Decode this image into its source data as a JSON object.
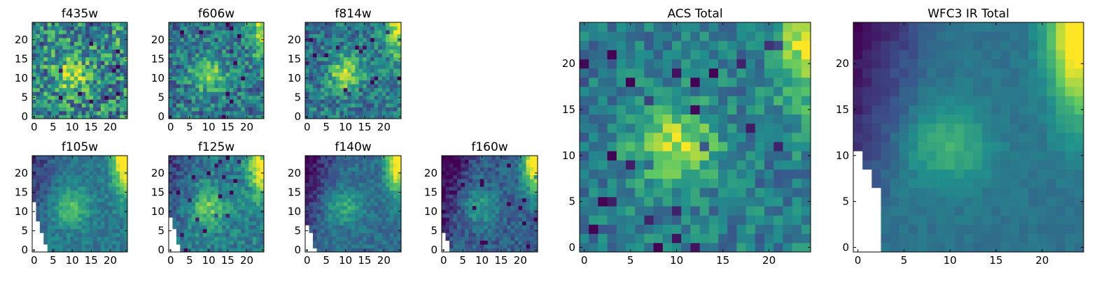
{
  "figure": {
    "background": "#ffffff"
  },
  "colormap": {
    "name": "viridis",
    "stops": [
      "#440154",
      "#3b528b",
      "#21918c",
      "#5ec962",
      "#fde725"
    ]
  },
  "chart_data": [
    {
      "type": "heatmap",
      "title": "f435w",
      "grid": false,
      "xlim": [
        0,
        25
      ],
      "ylim": [
        0,
        25
      ],
      "xticks": [
        0,
        5,
        10,
        15,
        20
      ],
      "yticks": [
        0,
        5,
        10,
        15,
        20
      ],
      "missing_region": [],
      "features": {
        "noise": 0.3,
        "blob": 0.35,
        "corner": 0.1,
        "lowleft": 0.0,
        "base": 0.48
      }
    },
    {
      "type": "heatmap",
      "title": "f606w",
      "grid": false,
      "xlim": [
        0,
        25
      ],
      "ylim": [
        0,
        25
      ],
      "xticks": [
        0,
        5,
        10,
        15,
        20
      ],
      "yticks": [
        0,
        5,
        10,
        15,
        20
      ],
      "missing_region": [],
      "features": {
        "noise": 0.22,
        "blob": 0.45,
        "corner": 0.45,
        "lowleft": 0.05,
        "base": 0.4
      }
    },
    {
      "type": "heatmap",
      "title": "f814w",
      "grid": false,
      "xlim": [
        0,
        25
      ],
      "ylim": [
        0,
        25
      ],
      "xticks": [
        0,
        5,
        10,
        15,
        20
      ],
      "yticks": [
        0,
        5,
        10,
        15,
        20
      ],
      "missing_region": [],
      "features": {
        "noise": 0.2,
        "blob": 0.45,
        "corner": 0.6,
        "lowleft": 0.05,
        "base": 0.4
      }
    },
    {
      "type": "heatmap",
      "title": "f105w",
      "grid": false,
      "xlim": [
        0,
        25
      ],
      "ylim": [
        0,
        25
      ],
      "xticks": [
        0,
        5,
        10,
        15,
        20
      ],
      "yticks": [
        0,
        5,
        10,
        15,
        20
      ],
      "missing_region": [
        [
          0,
          12
        ],
        [
          0,
          11
        ],
        [
          0,
          10
        ],
        [
          0,
          9
        ],
        [
          0,
          8
        ],
        [
          0,
          7
        ],
        [
          1,
          7
        ],
        [
          0,
          6
        ],
        [
          1,
          6
        ],
        [
          0,
          5
        ],
        [
          1,
          5
        ],
        [
          0,
          4
        ],
        [
          1,
          4
        ],
        [
          2,
          4
        ],
        [
          0,
          3
        ],
        [
          1,
          3
        ],
        [
          2,
          3
        ],
        [
          0,
          2
        ],
        [
          1,
          2
        ],
        [
          2,
          2
        ],
        [
          0,
          1
        ],
        [
          1,
          1
        ],
        [
          2,
          1
        ],
        [
          3,
          1
        ],
        [
          0,
          0
        ],
        [
          1,
          0
        ],
        [
          2,
          0
        ],
        [
          3,
          0
        ]
      ],
      "features": {
        "noise": 0.1,
        "blob": 0.3,
        "corner": 0.75,
        "lowleft": 0.3,
        "base": 0.4
      }
    },
    {
      "type": "heatmap",
      "title": "f125w",
      "grid": false,
      "xlim": [
        0,
        25
      ],
      "ylim": [
        0,
        25
      ],
      "xticks": [
        0,
        5,
        10,
        15,
        20
      ],
      "yticks": [
        0,
        5,
        10,
        15,
        20
      ],
      "missing_region": [
        [
          0,
          8
        ],
        [
          0,
          7
        ],
        [
          0,
          6
        ],
        [
          0,
          5
        ],
        [
          1,
          5
        ],
        [
          0,
          4
        ],
        [
          1,
          4
        ],
        [
          0,
          3
        ],
        [
          1,
          3
        ],
        [
          0,
          2
        ],
        [
          1,
          2
        ],
        [
          0,
          1
        ],
        [
          1,
          1
        ],
        [
          2,
          1
        ],
        [
          0,
          0
        ],
        [
          1,
          0
        ],
        [
          2,
          0
        ]
      ],
      "features": {
        "noise": 0.14,
        "blob": 0.35,
        "corner": 0.75,
        "lowleft": 0.3,
        "base": 0.42
      }
    },
    {
      "type": "heatmap",
      "title": "f140w",
      "grid": false,
      "xlim": [
        0,
        25
      ],
      "ylim": [
        0,
        25
      ],
      "xticks": [
        0,
        5,
        10,
        15,
        20
      ],
      "yticks": [
        0,
        5,
        10,
        15,
        20
      ],
      "missing_region": [
        [
          0,
          6
        ],
        [
          0,
          5
        ],
        [
          0,
          4
        ],
        [
          1,
          4
        ],
        [
          0,
          3
        ],
        [
          1,
          3
        ],
        [
          0,
          2
        ],
        [
          1,
          2
        ],
        [
          0,
          1
        ],
        [
          1,
          1
        ],
        [
          0,
          0
        ],
        [
          1,
          0
        ],
        [
          2,
          0
        ]
      ],
      "features": {
        "noise": 0.1,
        "blob": 0.25,
        "corner": 0.8,
        "lowleft": 0.45,
        "base": 0.35
      }
    },
    {
      "type": "heatmap",
      "title": "f160w",
      "grid": false,
      "xlim": [
        0,
        25
      ],
      "ylim": [
        0,
        25
      ],
      "xticks": [
        0,
        5,
        10,
        15,
        20
      ],
      "yticks": [
        0,
        5,
        10,
        15,
        20
      ],
      "missing_region": [
        [
          0,
          4
        ],
        [
          0,
          3
        ],
        [
          0,
          2
        ],
        [
          1,
          2
        ],
        [
          0,
          1
        ],
        [
          1,
          1
        ],
        [
          0,
          0
        ],
        [
          1,
          0
        ]
      ],
      "features": {
        "noise": 0.12,
        "blob": 0.25,
        "corner": 0.85,
        "lowleft": 0.45,
        "base": 0.3
      }
    },
    {
      "type": "heatmap",
      "title": "ACS Total",
      "grid": false,
      "xlim": [
        0,
        25
      ],
      "ylim": [
        0,
        25
      ],
      "xticks": [
        0,
        5,
        10,
        15,
        20
      ],
      "yticks": [
        0,
        5,
        10,
        15,
        20
      ],
      "missing_region": [],
      "features": {
        "noise": 0.16,
        "blob": 0.45,
        "corner": 0.55,
        "lowleft": 0.05,
        "base": 0.42
      }
    },
    {
      "type": "heatmap",
      "title": "WFC3 IR Total",
      "grid": false,
      "xlim": [
        0,
        25
      ],
      "ylim": [
        0,
        25
      ],
      "xticks": [
        0,
        5,
        10,
        15,
        20
      ],
      "yticks": [
        0,
        5,
        10,
        15,
        20
      ],
      "missing_region": [
        [
          0,
          10
        ],
        [
          0,
          9
        ],
        [
          0,
          8
        ],
        [
          1,
          8
        ],
        [
          0,
          7
        ],
        [
          1,
          7
        ],
        [
          0,
          6
        ],
        [
          1,
          6
        ],
        [
          2,
          6
        ],
        [
          0,
          5
        ],
        [
          1,
          5
        ],
        [
          2,
          5
        ],
        [
          0,
          4
        ],
        [
          1,
          4
        ],
        [
          2,
          4
        ],
        [
          0,
          3
        ],
        [
          1,
          3
        ],
        [
          2,
          3
        ],
        [
          0,
          2
        ],
        [
          1,
          2
        ],
        [
          2,
          2
        ],
        [
          0,
          1
        ],
        [
          1,
          1
        ],
        [
          2,
          1
        ],
        [
          0,
          0
        ],
        [
          1,
          0
        ],
        [
          2,
          0
        ]
      ],
      "features": {
        "noise": 0.04,
        "blob": 0.25,
        "corner": 0.8,
        "lowleft": 0.45,
        "base": 0.38
      }
    }
  ]
}
